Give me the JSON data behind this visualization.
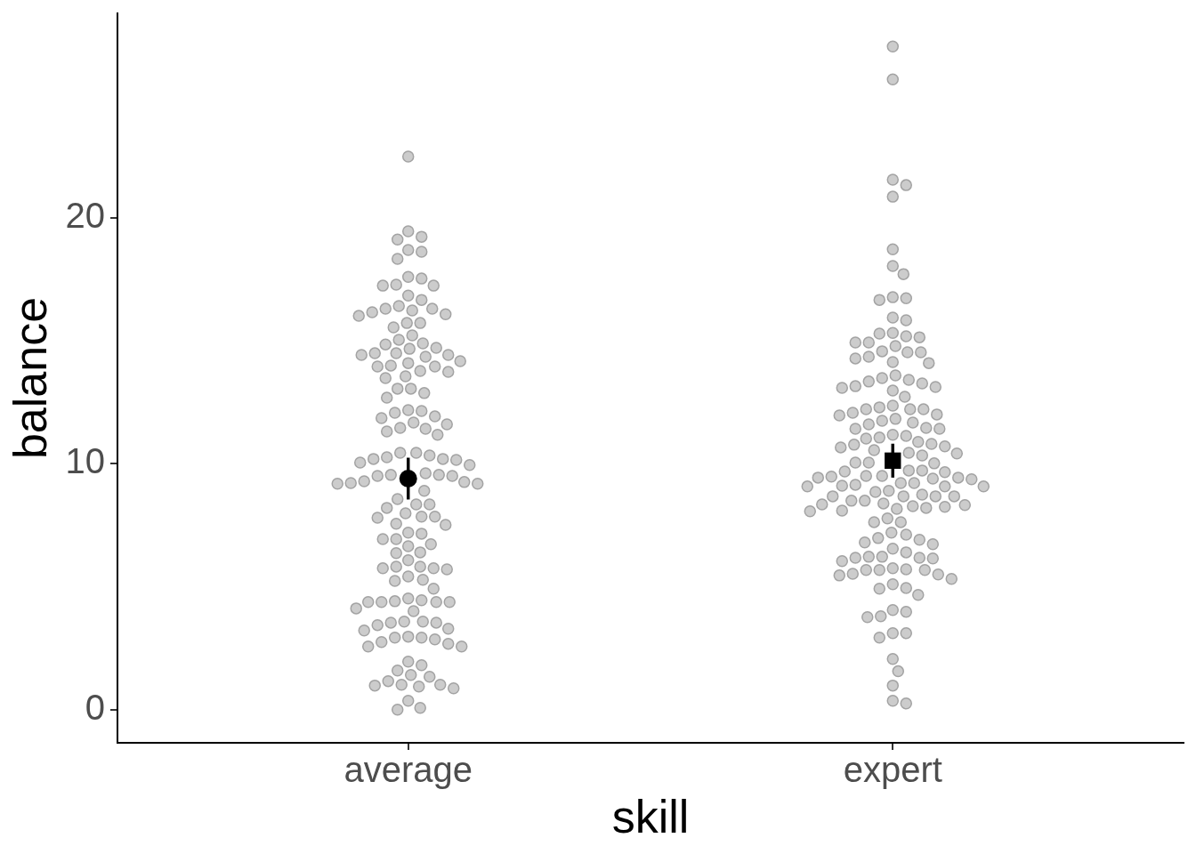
{
  "chart_data": {
    "type": "scatter",
    "xlabel": "skill",
    "ylabel": "balance",
    "categories": [
      "average",
      "expert"
    ],
    "ylim": [
      -1.35,
      28.33
    ],
    "yticks": [
      0,
      10,
      20
    ],
    "marker": "circle",
    "series": [
      {
        "color": "#cccccc",
        "x": [
          "average",
          "average",
          "average",
          "average",
          "average",
          "average",
          "average",
          "average",
          "average",
          "average",
          "average",
          "average",
          "average",
          "average",
          "average",
          "average",
          "average",
          "average",
          "average",
          "average",
          "average",
          "average",
          "average",
          "average",
          "average",
          "average",
          "average",
          "average",
          "average",
          "average",
          "average",
          "average",
          "average",
          "average",
          "average",
          "average",
          "average",
          "average",
          "average",
          "average",
          "average",
          "average",
          "average",
          "average",
          "average",
          "average",
          "average",
          "average",
          "average",
          "average",
          "average",
          "average",
          "average",
          "average",
          "average",
          "average",
          "average",
          "average",
          "average",
          "average",
          "average",
          "average",
          "average",
          "average",
          "average",
          "average",
          "average",
          "average",
          "average",
          "average",
          "average",
          "average",
          "average",
          "average",
          "average",
          "average",
          "average",
          "average",
          "average",
          "average",
          "average",
          "average",
          "average",
          "average",
          "average",
          "average",
          "average",
          "average",
          "average",
          "average",
          "average",
          "average",
          "average",
          "average",
          "average",
          "average",
          "average",
          "average",
          "average",
          "average",
          "average",
          "average",
          "average",
          "average",
          "average",
          "average",
          "average",
          "average",
          "average",
          "average",
          "average",
          "average",
          "average",
          "average",
          "average",
          "average",
          "average",
          "average",
          "average",
          "average",
          "average",
          "average",
          "average",
          "average",
          "average",
          "average",
          "average",
          "average",
          "average",
          "average",
          "average",
          "average",
          "average",
          "average",
          "average",
          "average",
          "average",
          "average",
          "average",
          "average",
          "average",
          "average",
          "average",
          "average",
          "average"
        ],
        "values": [
          22.5,
          19.46,
          19.24,
          19.13,
          18.7,
          18.63,
          18.34,
          17.61,
          17.54,
          17.29,
          17.25,
          17.25,
          16.85,
          16.67,
          16.42,
          16.31,
          16.24,
          16.31,
          16.17,
          16.09,
          16.02,
          15.73,
          15.73,
          15.55,
          15.23,
          15.05,
          14.9,
          14.86,
          14.72,
          14.68,
          14.5,
          14.43,
          14.5,
          14.43,
          14.36,
          14.1,
          14.18,
          13.96,
          14.0,
          13.96,
          13.74,
          13.78,
          13.56,
          13.49,
          13.06,
          13.06,
          12.88,
          12.69,
          12.19,
          12.15,
          12.08,
          11.93,
          11.86,
          11.68,
          11.61,
          11.46,
          11.32,
          11.18,
          11.43,
          10.45,
          10.45,
          10.34,
          10.27,
          10.2,
          10.16,
          10.2,
          9.95,
          10.05,
          9.51,
          9.51,
          9.55,
          9.55,
          9.62,
          9.19,
          9.26,
          9.19,
          9.22,
          9.29,
          8.9,
          8.57,
          8.35,
          8.21,
          8.35,
          7.99,
          7.81,
          7.85,
          7.85,
          7.56,
          7.52,
          7.16,
          7.2,
          6.94,
          6.94,
          6.73,
          6.65,
          6.4,
          6.37,
          6.08,
          5.82,
          5.75,
          5.71,
          5.75,
          5.82,
          5.42,
          5.24,
          5.28,
          4.92,
          4.45,
          4.41,
          4.52,
          4.38,
          4.38,
          4.38,
          4.38,
          4.01,
          4.12,
          3.54,
          3.54,
          3.58,
          3.58,
          3.44,
          3.29,
          3.22,
          2.93,
          2.75,
          2.97,
          2.68,
          2.93,
          2.86,
          2.57,
          2.57,
          1.81,
          1.95,
          1.59,
          1.41,
          1.34,
          1.16,
          1.01,
          0.98,
          1.01,
          0.94,
          0.87,
          0.36,
          0.07,
          0.0
        ]
      },
      {
        "color": "#cccccc",
        "x": [
          "expert",
          "expert",
          "expert",
          "expert",
          "expert",
          "expert",
          "expert",
          "expert",
          "expert",
          "expert",
          "expert",
          "expert",
          "expert",
          "expert",
          "expert",
          "expert",
          "expert",
          "expert",
          "expert",
          "expert",
          "expert",
          "expert",
          "expert",
          "expert",
          "expert",
          "expert",
          "expert",
          "expert",
          "expert",
          "expert",
          "expert",
          "expert",
          "expert",
          "expert",
          "expert",
          "expert",
          "expert",
          "expert",
          "expert",
          "expert",
          "expert",
          "expert",
          "expert",
          "expert",
          "expert",
          "expert",
          "expert",
          "expert",
          "expert",
          "expert",
          "expert",
          "expert",
          "expert",
          "expert",
          "expert",
          "expert",
          "expert",
          "expert",
          "expert",
          "expert",
          "expert",
          "expert",
          "expert",
          "expert",
          "expert",
          "expert",
          "expert",
          "expert",
          "expert",
          "expert",
          "expert",
          "expert",
          "expert",
          "expert",
          "expert",
          "expert",
          "expert",
          "expert",
          "expert",
          "expert",
          "expert",
          "expert",
          "expert",
          "expert",
          "expert",
          "expert",
          "expert",
          "expert",
          "expert",
          "expert",
          "expert",
          "expert",
          "expert",
          "expert",
          "expert",
          "expert",
          "expert",
          "expert",
          "expert",
          "expert",
          "expert",
          "expert",
          "expert",
          "expert",
          "expert",
          "expert",
          "expert",
          "expert",
          "expert",
          "expert",
          "expert",
          "expert",
          "expert",
          "expert",
          "expert",
          "expert",
          "expert",
          "expert",
          "expert",
          "expert",
          "expert",
          "expert",
          "expert",
          "expert",
          "expert",
          "expert",
          "expert",
          "expert",
          "expert",
          "expert",
          "expert",
          "expert",
          "expert",
          "expert",
          "expert",
          "expert",
          "expert",
          "expert",
          "expert",
          "expert",
          "expert",
          "expert",
          "expert",
          "expert",
          "expert",
          "expert"
        ],
        "values": [
          26.98,
          25.64,
          21.34,
          21.56,
          20.87,
          18.73,
          18.05,
          17.72,
          16.74,
          16.78,
          16.67,
          15.95,
          15.84,
          15.3,
          15.33,
          15.15,
          15.19,
          14.94,
          14.79,
          14.94,
          14.58,
          14.54,
          14.29,
          14.36,
          14.1,
          14.54,
          14.14,
          13.49,
          13.42,
          13.6,
          13.27,
          13.35,
          13.16,
          12.73,
          13.13,
          12.98,
          13.09,
          12.22,
          12.08,
          12.22,
          12.22,
          11.97,
          12.01,
          12.37,
          12.3,
          11.83,
          11.68,
          11.75,
          11.61,
          11.43,
          11.18,
          11.03,
          11.43,
          11.46,
          11.14,
          11.07,
          10.81,
          10.89,
          10.78,
          10.71,
          10.67,
          10.42,
          10.34,
          10.45,
          10.56,
          10.05,
          10.05,
          10.02,
          9.73,
          9.73,
          9.69,
          9.66,
          9.48,
          9.51,
          9.44,
          9.4,
          9.44,
          9.51,
          9.37,
          9.15,
          9.08,
          9.08,
          9.22,
          9.22,
          9.11,
          8.9,
          9.08,
          8.75,
          8.68,
          8.68,
          8.5,
          8.32,
          8.68,
          8.86,
          8.68,
          8.5,
          8.28,
          8.35,
          8.39,
          8.21,
          8.25,
          8.17,
          8.07,
          7.78,
          7.63,
          8.1,
          7.63,
          7.12,
          6.91,
          6.8,
          6.98,
          6.73,
          7.2,
          6.4,
          6.18,
          6.04,
          6.15,
          6.22,
          6.55,
          6.22,
          6.18,
          5.71,
          5.68,
          5.68,
          5.68,
          5.75,
          5.53,
          5.5,
          5.1,
          5.46,
          5.32,
          4.95,
          4.92,
          4.67,
          3.98,
          3.76,
          3.8,
          4.05,
          3.11,
          2.93,
          3.11,
          2.06,
          1.56,
          0.98,
          0.36,
          0.25
        ]
      },
      {
        "color": "#000000",
        "marker": "circle",
        "x": [
          "average"
        ],
        "values": [
          9.4
        ],
        "errors": [
          0.85
        ]
      },
      {
        "color": "#000000",
        "marker": "square",
        "x": [
          "expert"
        ],
        "values": [
          10.13
        ],
        "errors": [
          0.69
        ]
      }
    ]
  }
}
